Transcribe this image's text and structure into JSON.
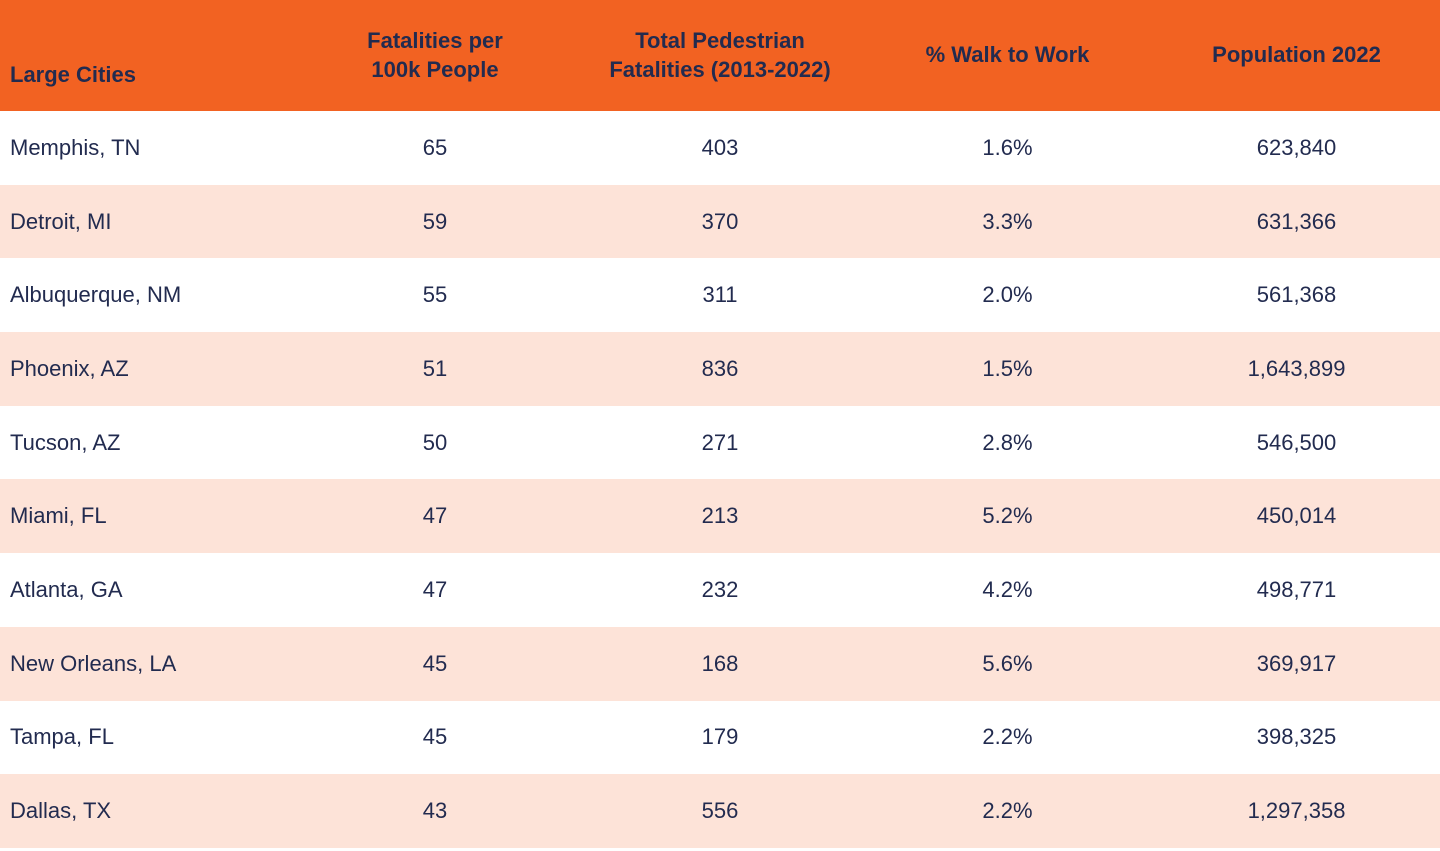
{
  "table": {
    "header": {
      "col1": "Large Cities",
      "col2": "Fatalities per\n100k People",
      "col3": "Total Pedestrian\nFatalities (2013-2022)",
      "col4": "% Walk to Work",
      "col5": "Population 2022"
    },
    "rows": [
      {
        "city": "Memphis, TN",
        "per100k": "65",
        "total": "403",
        "walk": "1.6%",
        "population": "623,840"
      },
      {
        "city": "Detroit, MI",
        "per100k": "59",
        "total": "370",
        "walk": "3.3%",
        "population": "631,366"
      },
      {
        "city": "Albuquerque, NM",
        "per100k": "55",
        "total": "311",
        "walk": "2.0%",
        "population": "561,368"
      },
      {
        "city": "Phoenix, AZ",
        "per100k": "51",
        "total": "836",
        "walk": "1.5%",
        "population": "1,643,899"
      },
      {
        "city": "Tucson, AZ",
        "per100k": "50",
        "total": "271",
        "walk": "2.8%",
        "population": "546,500"
      },
      {
        "city": "Miami, FL",
        "per100k": "47",
        "total": "213",
        "walk": "5.2%",
        "population": "450,014"
      },
      {
        "city": "Atlanta, GA",
        "per100k": "47",
        "total": "232",
        "walk": "4.2%",
        "population": "498,771"
      },
      {
        "city": "New Orleans, LA",
        "per100k": "45",
        "total": "168",
        "walk": "5.6%",
        "population": "369,917"
      },
      {
        "city": "Tampa, FL",
        "per100k": "45",
        "total": "179",
        "walk": "2.2%",
        "population": "398,325"
      },
      {
        "city": "Dallas, TX",
        "per100k": "43",
        "total": "556",
        "walk": "2.2%",
        "population": "1,297,358"
      }
    ]
  },
  "colors": {
    "header_bg": "#F26222",
    "alt_row_bg": "#FDE3D8",
    "row_bg": "#FFFFFF",
    "text": "#222B4F"
  },
  "chart_data": {
    "type": "table",
    "columns": [
      "Large Cities",
      "Fatalities per 100k People",
      "Total Pedestrian Fatalities (2013-2022)",
      "% Walk to Work",
      "Population 2022"
    ],
    "rows": [
      [
        "Memphis, TN",
        65,
        403,
        "1.6%",
        623840
      ],
      [
        "Detroit, MI",
        59,
        370,
        "3.3%",
        631366
      ],
      [
        "Albuquerque, NM",
        55,
        311,
        "2.0%",
        561368
      ],
      [
        "Phoenix, AZ",
        51,
        836,
        "1.5%",
        1643899
      ],
      [
        "Tucson, AZ",
        50,
        271,
        "2.8%",
        546500
      ],
      [
        "Miami, FL",
        47,
        213,
        "5.2%",
        450014
      ],
      [
        "Atlanta, GA",
        47,
        232,
        "4.2%",
        498771
      ],
      [
        "New Orleans, LA",
        45,
        168,
        "5.6%",
        369917
      ],
      [
        "Tampa, FL",
        45,
        179,
        "2.2%",
        398325
      ],
      [
        "Dallas, TX",
        43,
        556,
        "2.2%",
        1297358
      ]
    ]
  }
}
